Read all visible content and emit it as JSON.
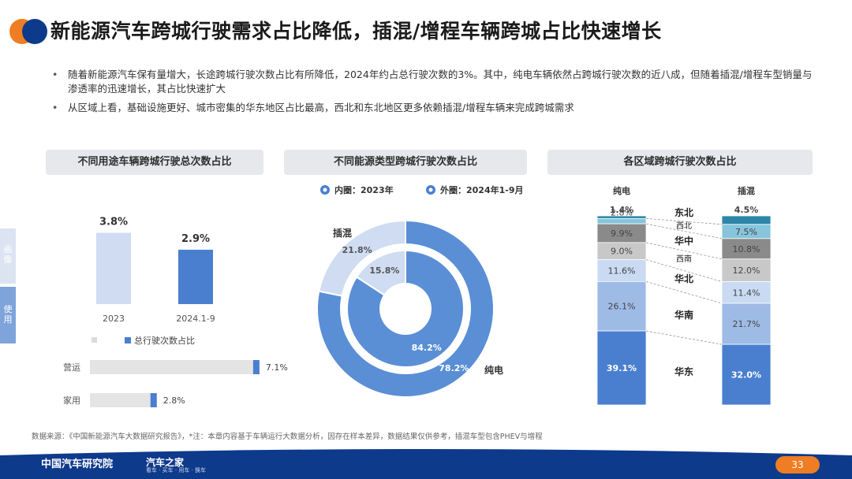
{
  "header": {
    "title": "新能源汽车跨城行驶需求占比降低，插混/增程车辆跨城占比快速增长",
    "colors": {
      "orange": "#ef7d23",
      "navy": "#0e3a8c"
    }
  },
  "bullets": [
    "随着新能源汽车保有量增大，长途跨城行驶次数占比有所降低，2024年约占总行驶次数的3%。其中，纯电车辆依然占跨城行驶次数的近八成，但随着插混/增程车型销量与渗透率的迅速增长，其占比快速扩大",
    "从区域上看，基础设施更好、城市密集的华东地区占比最高，西北和东北地区更多依赖插混/增程车辆来完成跨城需求"
  ],
  "side_tabs": [
    "画像",
    "使用"
  ],
  "panels": {
    "left_title": "不同用途车辆跨城行驶总次数占比",
    "mid_title": "不同能源类型跨城行驶次数占比",
    "right_title": "各区域跨城行驶次数占比"
  },
  "chart_data": [
    {
      "type": "bar",
      "categories": [
        "2023",
        "2024.1-9"
      ],
      "values": [
        3.8,
        2.9
      ],
      "value_labels": [
        "3.8%",
        "2.9%"
      ],
      "legend": [
        "总行驶次数占比"
      ],
      "colors": [
        "#cfdcf2",
        "#4a7fd0"
      ]
    },
    {
      "type": "bar",
      "orientation": "horizontal",
      "categories": [
        "营运",
        "家用"
      ],
      "values": [
        7.1,
        2.8
      ],
      "value_labels": [
        "7.1%",
        "2.8%"
      ],
      "colors": {
        "track": "#e4e4e4",
        "fill": "#4a7fd0"
      }
    },
    {
      "type": "pie",
      "legend": [
        {
          "label": "内圈：2023年",
          "color": "#4a7fd0"
        },
        {
          "label": "外圈：2024年1-9月",
          "color": "#4a7fd0"
        }
      ],
      "outer": {
        "labels": [
          "纯电",
          "插混"
        ],
        "values": [
          78.2,
          21.8
        ],
        "value_labels": [
          "78.2%",
          "21.8%"
        ]
      },
      "inner": {
        "labels": [
          "纯电",
          "插混"
        ],
        "values": [
          84.2,
          15.8
        ],
        "value_labels": [
          "84.2%",
          "15.8%"
        ]
      },
      "category_labels": [
        "插混",
        "纯电"
      ],
      "colors": {
        "纯电": "#5a8fd6",
        "插混": "#cfdcf2"
      }
    },
    {
      "type": "bar",
      "stacked": true,
      "categories": [
        "纯电",
        "插混"
      ],
      "regions": [
        "东北",
        "西北",
        "华中",
        "西南",
        "华北",
        "华南",
        "华东"
      ],
      "series": [
        {
          "name": "东北",
          "values": [
            1.4,
            4.5
          ],
          "value_labels": [
            "1.4%",
            "4.5%"
          ],
          "color": "#2d86a8"
        },
        {
          "name": "西北",
          "values": [
            2.8,
            7.5
          ],
          "value_labels": [
            "2.8%",
            "7.5%"
          ],
          "color": "#86c5dc"
        },
        {
          "name": "华中",
          "values": [
            9.9,
            10.8
          ],
          "value_labels": [
            "9.9%",
            "10.8%"
          ],
          "color": "#8a8a8a"
        },
        {
          "name": "西南",
          "values": [
            9.0,
            12.0
          ],
          "value_labels": [
            "9.0%",
            "12.0%"
          ],
          "color": "#c8c8c8"
        },
        {
          "name": "华北",
          "values": [
            11.6,
            11.4
          ],
          "value_labels": [
            "11.6%",
            "11.4%"
          ],
          "color": "#c9daf2"
        },
        {
          "name": "华南",
          "values": [
            26.1,
            21.7
          ],
          "value_labels": [
            "26.1%",
            "21.7%"
          ],
          "color": "#9ebbe6"
        },
        {
          "name": "华东",
          "values": [
            39.1,
            32.0
          ],
          "value_labels": [
            "39.1%",
            "32.0%"
          ],
          "color": "#4a7fd0"
        }
      ]
    }
  ],
  "footer": {
    "source": "数据来源：《中国新能源汽车大数据研究报告》，*注：本章内容基于车辆运行大数据分析，因存在样本差异，数据结果仅供参考，插混车型包含PHEV与增程",
    "brand": "中国汽车研究院",
    "brand2": "汽车之家",
    "brand2_sub": "看车 · 买车 · 用车 · 换车",
    "page": "33"
  }
}
